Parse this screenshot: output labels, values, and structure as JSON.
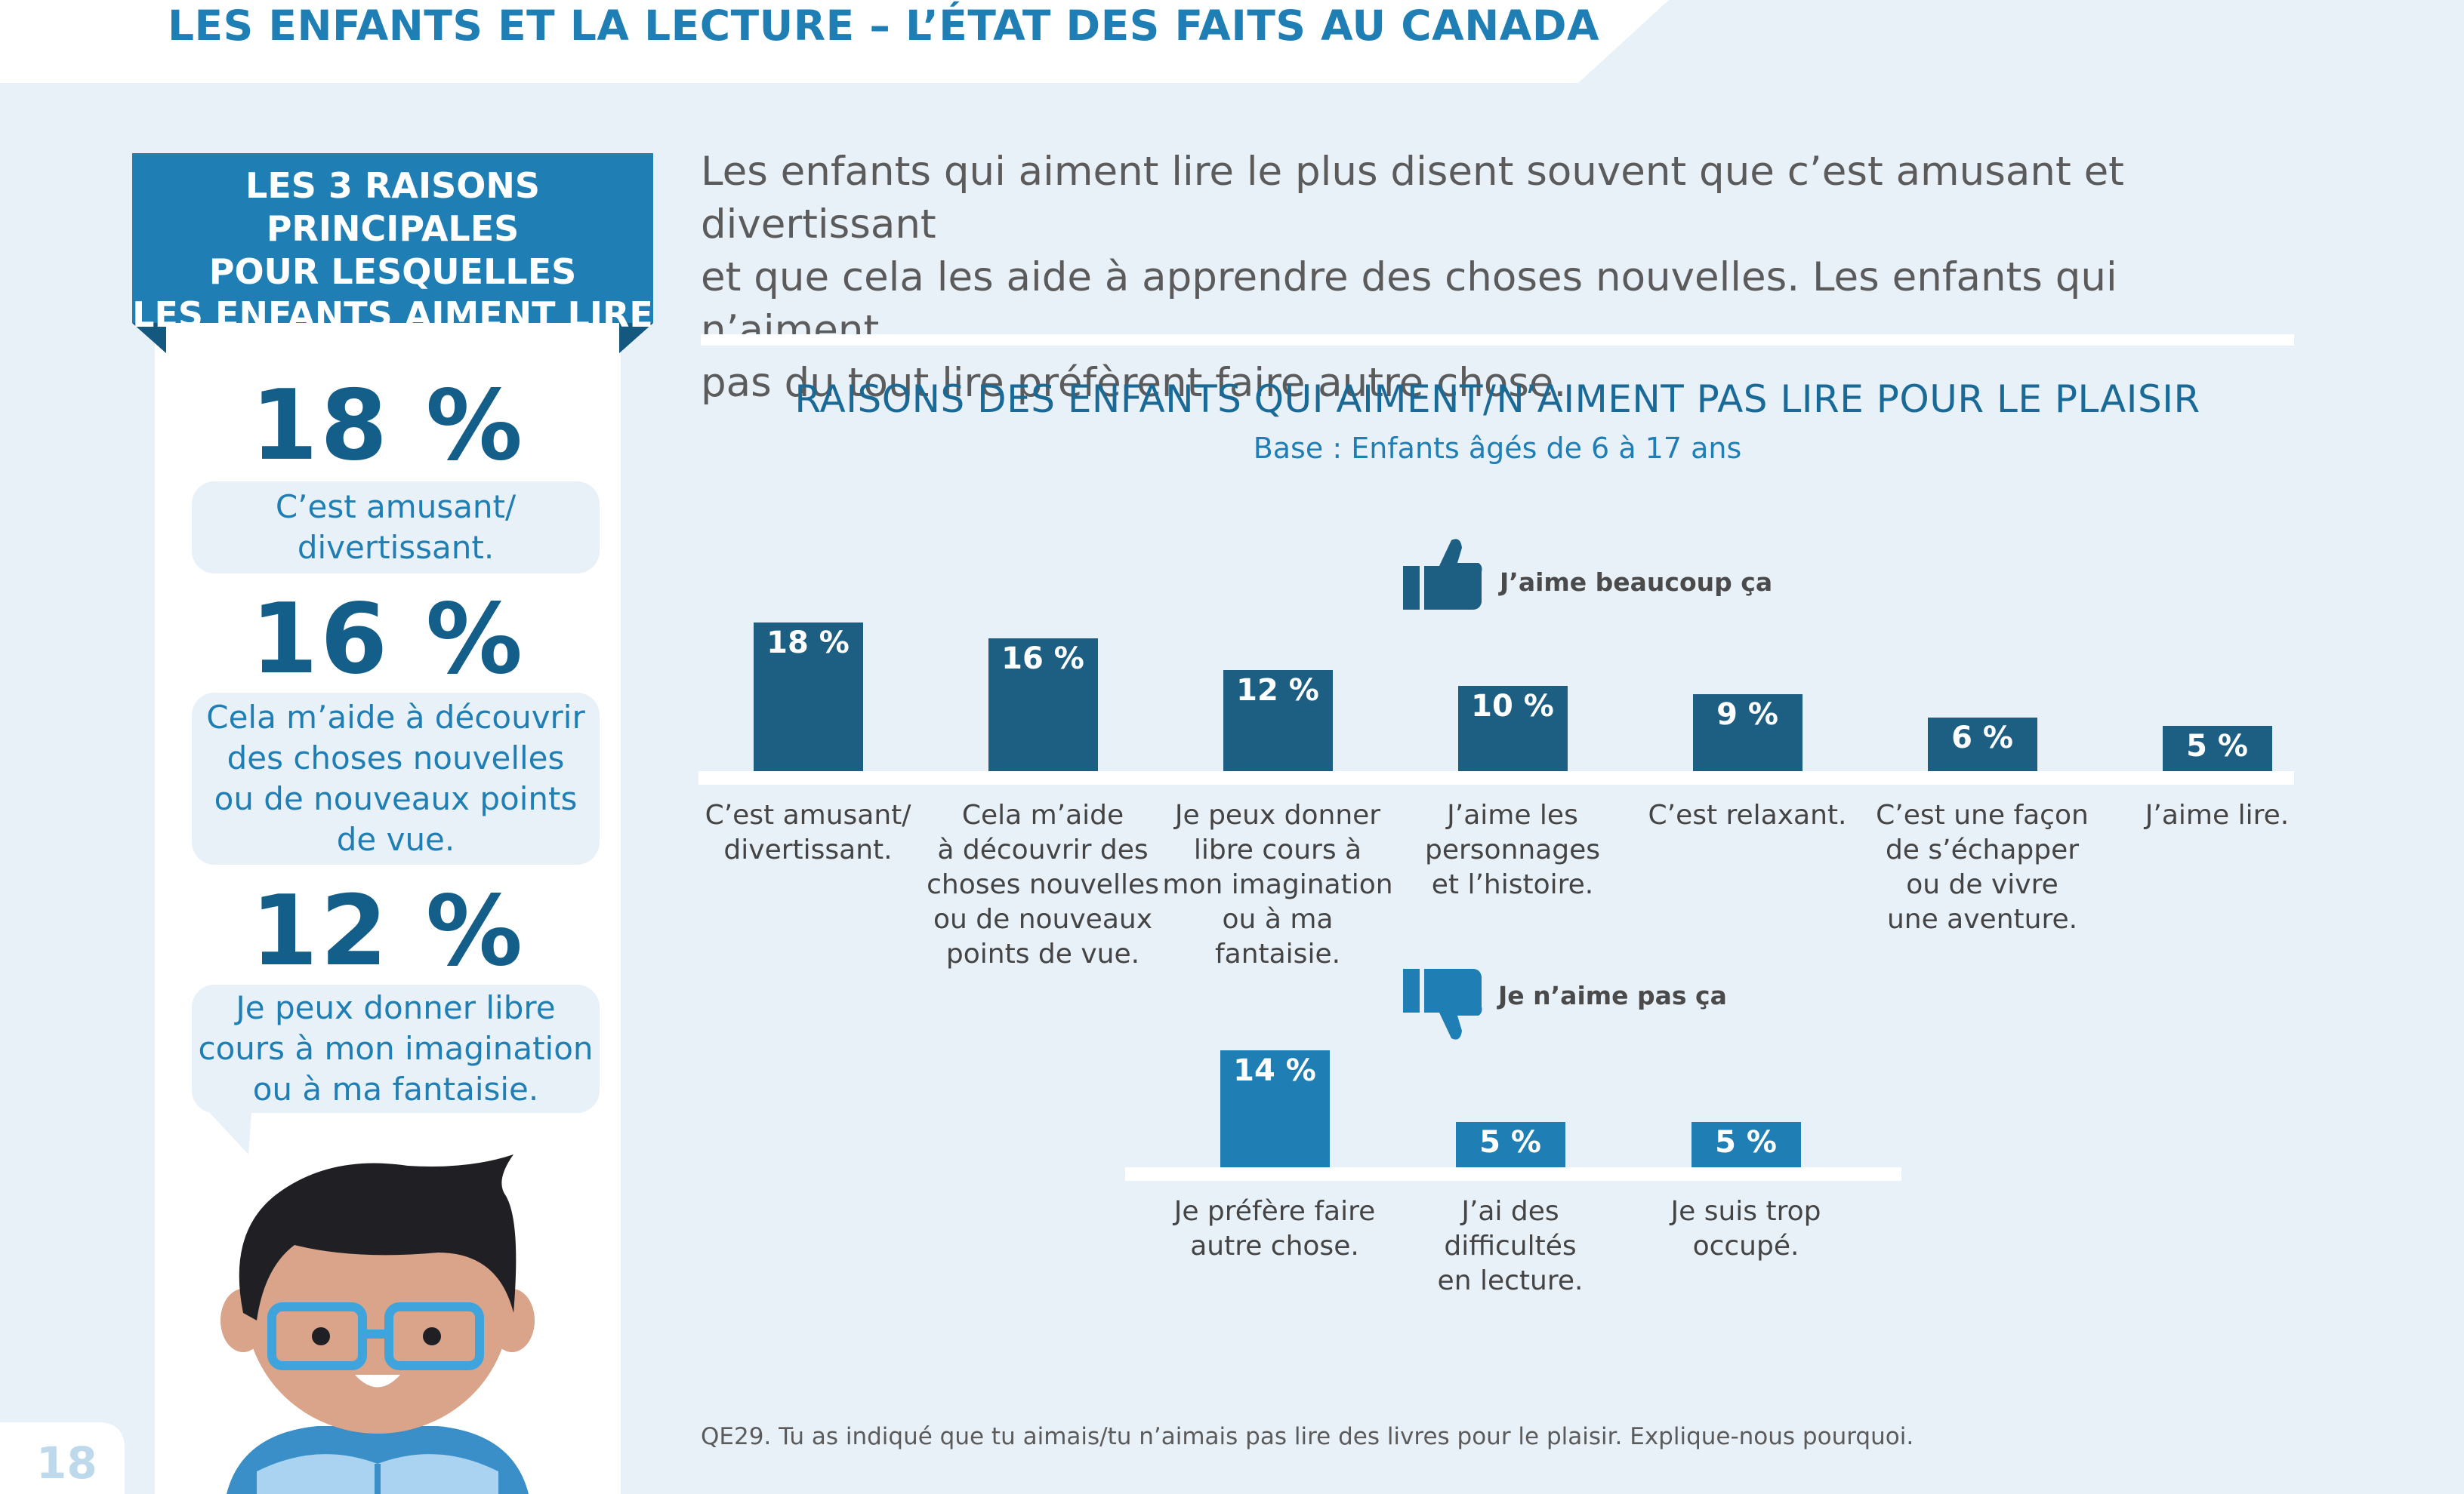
{
  "page": {
    "title": "LES ENFANTS ET LA LECTURE – L’ÉTAT DES FAITS AU CANADA",
    "page_number": "18"
  },
  "sidebar": {
    "banner": "LES 3 RAISONS PRINCIPALES\nPOUR LESQUELLES\nLES ENFANTS AIMENT LIRE\nPOUR LE PLAISIR",
    "stats": [
      {
        "value": "18 %",
        "text": "C’est amusant/\ndivertissant."
      },
      {
        "value": "16 %",
        "text": "Cela m’aide à découvrir\ndes choses nouvelles\nou de nouveaux points\nde vue."
      },
      {
        "value": "12 %",
        "text": "Je peux donner libre\ncours à mon imagination\nou à ma fantaisie."
      }
    ]
  },
  "intro": "Les enfants qui aiment lire le plus disent souvent que c’est amusant et divertissant\net que cela les aide à apprendre des choses nouvelles. Les enfants qui n’aiment\npas du tout lire préfèrent faire autre chose.",
  "footnote": "QE29. Tu as indiqué que tu aimais/tu n’aimais pas lire des livres pour le plaisir. Explique-nous pourquoi.",
  "colors": {
    "title_blue": "#1f7fb4",
    "dark_bar": "#1d5f83",
    "light_bar": "#1f7fb4",
    "panel_bg": "#e8f0f8"
  },
  "chart_data": [
    {
      "type": "bar",
      "title": "RAISONS DES ENFANTS QUI AIMENT/N’AIMENT PAS LIRE POUR LE PLAISIR",
      "subtitle": "Base : Enfants âgés de 6 à 17 ans",
      "legend": {
        "label": "J’aime beaucoup ça",
        "icon": "thumbs-up-icon"
      },
      "categories": [
        "C’est amusant/\ndivertissant.",
        "Cela m’aide\nà découvrir des\nchoses nouvelles\nou de nouveaux\npoints de vue.",
        "Je peux donner\nlibre cours à\nmon imagination\nou à ma fantaisie.",
        "J’aime les\npersonnages\net l’histoire.",
        "C’est relaxant.",
        "C’est une façon\nde s’échapper\nou de vivre\nune aventure.",
        "J’aime lire."
      ],
      "values": [
        18,
        16,
        12,
        10,
        9,
        6,
        5
      ],
      "value_labels": [
        "18 %",
        "16 %",
        "12 %",
        "10 %",
        "9 %",
        "6 %",
        "5 %"
      ],
      "unit": "%",
      "ylim": [
        0,
        18
      ]
    },
    {
      "type": "bar",
      "legend": {
        "label": "Je n’aime pas ça",
        "icon": "thumbs-down-icon"
      },
      "categories": [
        "Je préfère faire\nautre chose.",
        "J’ai des difficultés\nen lecture.",
        "Je suis trop\noccupé."
      ],
      "values": [
        14,
        5,
        5
      ],
      "value_labels": [
        "14 %",
        "5 %",
        "5 %"
      ],
      "unit": "%",
      "ylim": [
        0,
        18
      ]
    }
  ]
}
